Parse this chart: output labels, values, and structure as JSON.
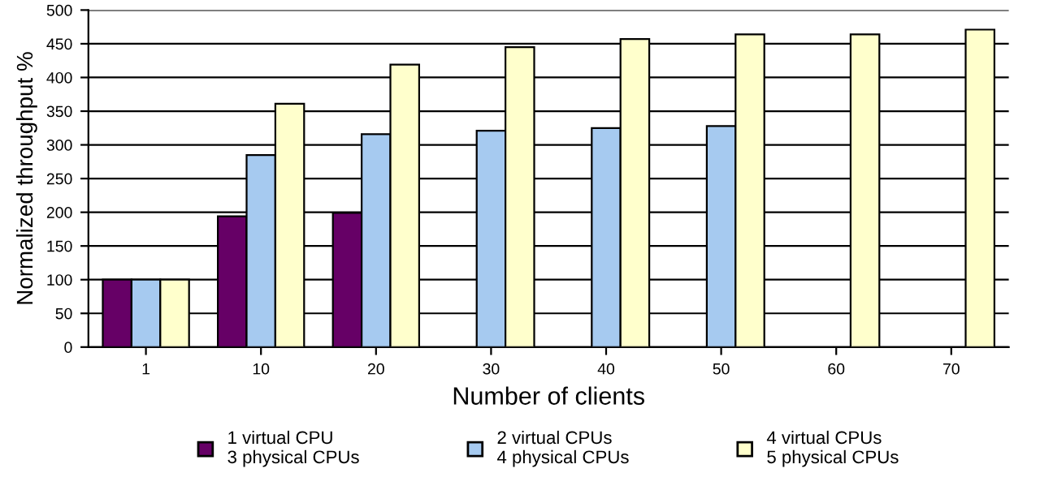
{
  "chart_data": {
    "type": "bar",
    "xlabel": "Number of clients",
    "ylabel": "Normalized throughput %",
    "categories": [
      "1",
      "10",
      "20",
      "30",
      "40",
      "50",
      "60",
      "70"
    ],
    "series": [
      {
        "name": "1 virtual CPU\n3 physical CPUs",
        "color": "#660066",
        "values": [
          100,
          194,
          199,
          null,
          null,
          null,
          null,
          null
        ]
      },
      {
        "name": "2 virtual CPUs\n4 physical CPUs",
        "color": "#a6caf0",
        "values": [
          100,
          285,
          316,
          321,
          325,
          328,
          null,
          null
        ]
      },
      {
        "name": "4 virtual CPUs\n5 physical CPUs",
        "color": "#ffffcc",
        "values": [
          100,
          361,
          419,
          445,
          457,
          464,
          464,
          471
        ]
      }
    ],
    "ylim": [
      0,
      500
    ],
    "yticks": [
      0,
      50,
      100,
      150,
      200,
      250,
      300,
      350,
      400,
      450,
      500
    ],
    "grid": "y",
    "legend": "bottom"
  }
}
